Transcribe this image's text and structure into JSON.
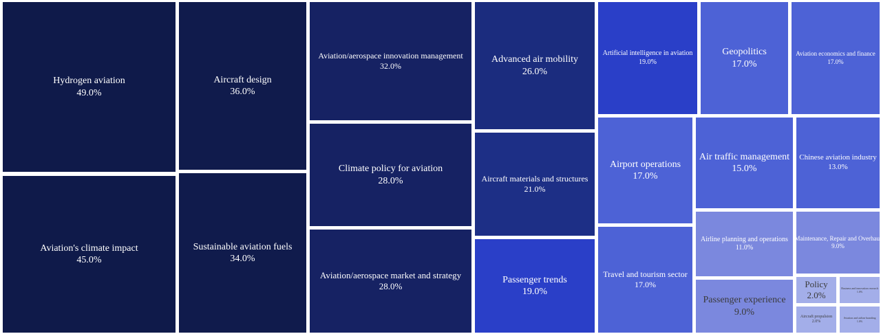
{
  "chart_data": {
    "type": "treemap",
    "unit": "%",
    "items": [
      {
        "label": "Hydrogen aviation",
        "value": 49.0,
        "value_text": "49.0%",
        "color": "#0f1a4a",
        "text_color": "#ffffff"
      },
      {
        "label": "Aviation's climate impact",
        "value": 45.0,
        "value_text": "45.0%",
        "color": "#0f1a4a",
        "text_color": "#ffffff"
      },
      {
        "label": "Aircraft design",
        "value": 36.0,
        "value_text": "36.0%",
        "color": "#101b4c",
        "text_color": "#ffffff"
      },
      {
        "label": "Sustainable aviation fuels",
        "value": 34.0,
        "value_text": "34.0%",
        "color": "#101b4c",
        "text_color": "#ffffff"
      },
      {
        "label": "Aviation/aerospace innovation management",
        "value": 32.0,
        "value_text": "32.0%",
        "color": "#162263",
        "text_color": "#ffffff"
      },
      {
        "label": "Climate policy for aviation",
        "value": 28.0,
        "value_text": "28.0%",
        "color": "#162263",
        "text_color": "#ffffff"
      },
      {
        "label": "Aviation/aerospace market and strategy",
        "value": 28.0,
        "value_text": "28.0%",
        "color": "#162263",
        "text_color": "#ffffff"
      },
      {
        "label": "Advanced air mobility",
        "value": 26.0,
        "value_text": "26.0%",
        "color": "#1b2c7e",
        "text_color": "#ffffff"
      },
      {
        "label": "Aircraft materials and structures",
        "value": 21.0,
        "value_text": "21.0%",
        "color": "#1d2f86",
        "text_color": "#ffffff"
      },
      {
        "label": "Passenger trends",
        "value": 19.0,
        "value_text": "19.0%",
        "color": "#2a3fc8",
        "text_color": "#ffffff"
      },
      {
        "label": "Artificial intelligence in aviation",
        "value": 19.0,
        "value_text": "19.0%",
        "color": "#2a3fc8",
        "text_color": "#ffffff"
      },
      {
        "label": "Geopolitics",
        "value": 17.0,
        "value_text": "17.0%",
        "color": "#4d62d6",
        "text_color": "#ffffff"
      },
      {
        "label": "Aviation economics and finance",
        "value": 17.0,
        "value_text": "17.0%",
        "color": "#4d62d6",
        "text_color": "#ffffff"
      },
      {
        "label": "Airport operations",
        "value": 17.0,
        "value_text": "17.0%",
        "color": "#4d62d6",
        "text_color": "#ffffff"
      },
      {
        "label": "Travel and tourism sector",
        "value": 17.0,
        "value_text": "17.0%",
        "color": "#4d62d6",
        "text_color": "#ffffff"
      },
      {
        "label": "Air traffic management",
        "value": 15.0,
        "value_text": "15.0%",
        "color": "#4d62d6",
        "text_color": "#ffffff"
      },
      {
        "label": "Chinese aviation industry",
        "value": 13.0,
        "value_text": "13.0%",
        "color": "#4d62d6",
        "text_color": "#ffffff"
      },
      {
        "label": "Airline planning and operations",
        "value": 11.0,
        "value_text": "11.0%",
        "color": "#7b88de",
        "text_color": "#ffffff"
      },
      {
        "label": "Maintenance, Repair and Overhaul",
        "value": 9.0,
        "value_text": "9.0%",
        "color": "#7b88de",
        "text_color": "#ffffff"
      },
      {
        "label": "Passenger experience",
        "value": 9.0,
        "value_text": "9.0%",
        "color": "#7b88de",
        "text_color": "#3a3a3a"
      },
      {
        "label": "Policy",
        "value": 2.0,
        "value_text": "2.0%",
        "color": "#a3aee9",
        "text_color": "#3a3a3a"
      },
      {
        "label": "Business and innovation research",
        "value": 1.0,
        "value_text": "1.0%",
        "color": "#a3aee9",
        "text_color": "#3a3a3a"
      },
      {
        "label": "Aircraft propulsion",
        "value": 2.0,
        "value_text": "2.0%",
        "color": "#a3aee9",
        "text_color": "#3a3a3a"
      },
      {
        "label": "Aviation and airline branding",
        "value": 1.0,
        "value_text": "1.0%",
        "color": "#a3aee9",
        "text_color": "#3a3a3a"
      }
    ]
  }
}
